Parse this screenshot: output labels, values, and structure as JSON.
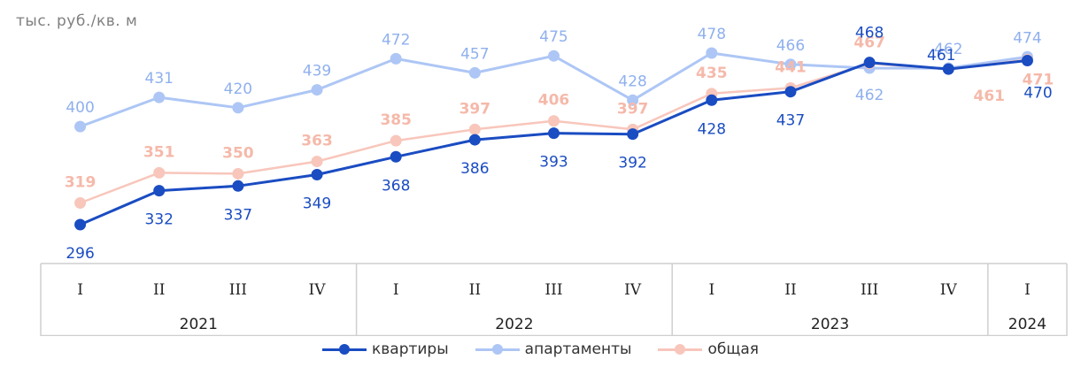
{
  "chart_data": {
    "type": "line",
    "ylabel": "тыс. руб./кв. м",
    "categories": [
      "I",
      "II",
      "III",
      "IV",
      "I",
      "II",
      "III",
      "IV",
      "I",
      "II",
      "III",
      "IV",
      "I"
    ],
    "years": [
      {
        "label": "2021",
        "quarters": 4
      },
      {
        "label": "2022",
        "quarters": 4
      },
      {
        "label": "2023",
        "quarters": 4
      },
      {
        "label": "2024",
        "quarters": 1
      }
    ],
    "series": [
      {
        "name": "квартиры",
        "color": "#1a4cc2",
        "values": [
          296,
          332,
          337,
          349,
          368,
          386,
          393,
          392,
          428,
          437,
          468,
          461,
          470
        ]
      },
      {
        "name": "апартаменты",
        "color": "#adc6f5",
        "values": [
          400,
          431,
          420,
          439,
          472,
          457,
          475,
          428,
          478,
          466,
          462,
          462,
          474
        ]
      },
      {
        "name": "общая",
        "color": "#f8c6bb",
        "values": [
          319,
          351,
          350,
          363,
          385,
          397,
          406,
          397,
          435,
          441,
          467,
          461,
          471
        ]
      }
    ],
    "grid": false,
    "legend_position": "bottom"
  }
}
